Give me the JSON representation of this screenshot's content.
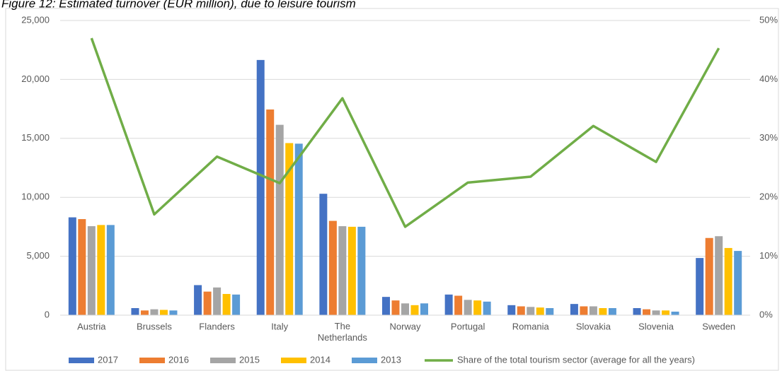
{
  "chart_data": {
    "type": "bar",
    "title": "Figure 12: Estimated turnover (EUR million), due to leisure tourism",
    "categories": [
      "Austria",
      "Brussels",
      "Flanders",
      "Italy",
      "The Netherlands",
      "Norway",
      "Portugal",
      "Romania",
      "Slovakia",
      "Slovenia",
      "Sweden"
    ],
    "series": [
      {
        "name": "2017",
        "color": "#4472c4",
        "values": [
          8300,
          600,
          2550,
          21650,
          10300,
          1550,
          1750,
          850,
          950,
          600,
          4850
        ]
      },
      {
        "name": "2016",
        "color": "#ed7d31",
        "values": [
          8150,
          400,
          2000,
          17450,
          8000,
          1250,
          1650,
          750,
          750,
          500,
          6550
        ]
      },
      {
        "name": "2015",
        "color": "#a5a5a5",
        "values": [
          7550,
          500,
          2350,
          16150,
          7550,
          1000,
          1300,
          700,
          750,
          400,
          6700
        ]
      },
      {
        "name": "2014",
        "color": "#ffc000",
        "values": [
          7650,
          450,
          1800,
          14600,
          7500,
          850,
          1250,
          650,
          600,
          400,
          5700
        ]
      },
      {
        "name": "2013",
        "color": "#5b9bd5",
        "values": [
          7650,
          400,
          1750,
          14550,
          7500,
          1000,
          1150,
          600,
          600,
          300,
          5450
        ]
      },
      {
        "name": "Share of the total tourism sector (average for all the years)",
        "color": "#70ad47",
        "type": "line",
        "axis": "y2",
        "values": [
          47.0,
          17.1,
          26.9,
          22.4,
          36.8,
          15.0,
          22.5,
          23.5,
          32.1,
          26.0,
          45.3
        ]
      }
    ],
    "ylim": [
      0,
      25000
    ],
    "yticks": [
      0,
      {
        "value": 5000,
        "label": "5,000"
      },
      {
        "value": 10000,
        "label": "10,000"
      },
      {
        "value": 15000,
        "label": "15,000"
      },
      {
        "value": 20000,
        "label": "20,000"
      },
      {
        "value": 25000,
        "label": "25,000"
      }
    ],
    "y2lim": [
      0,
      50
    ],
    "y2ticks": [
      {
        "value": 0,
        "label": "0%"
      },
      {
        "value": 10,
        "label": "10%"
      },
      {
        "value": 20,
        "label": "20%"
      },
      {
        "value": 30,
        "label": "30%"
      },
      {
        "value": 40,
        "label": "40%"
      },
      {
        "value": 50,
        "label": "50%"
      }
    ],
    "grid": true,
    "legend": "bottom"
  }
}
